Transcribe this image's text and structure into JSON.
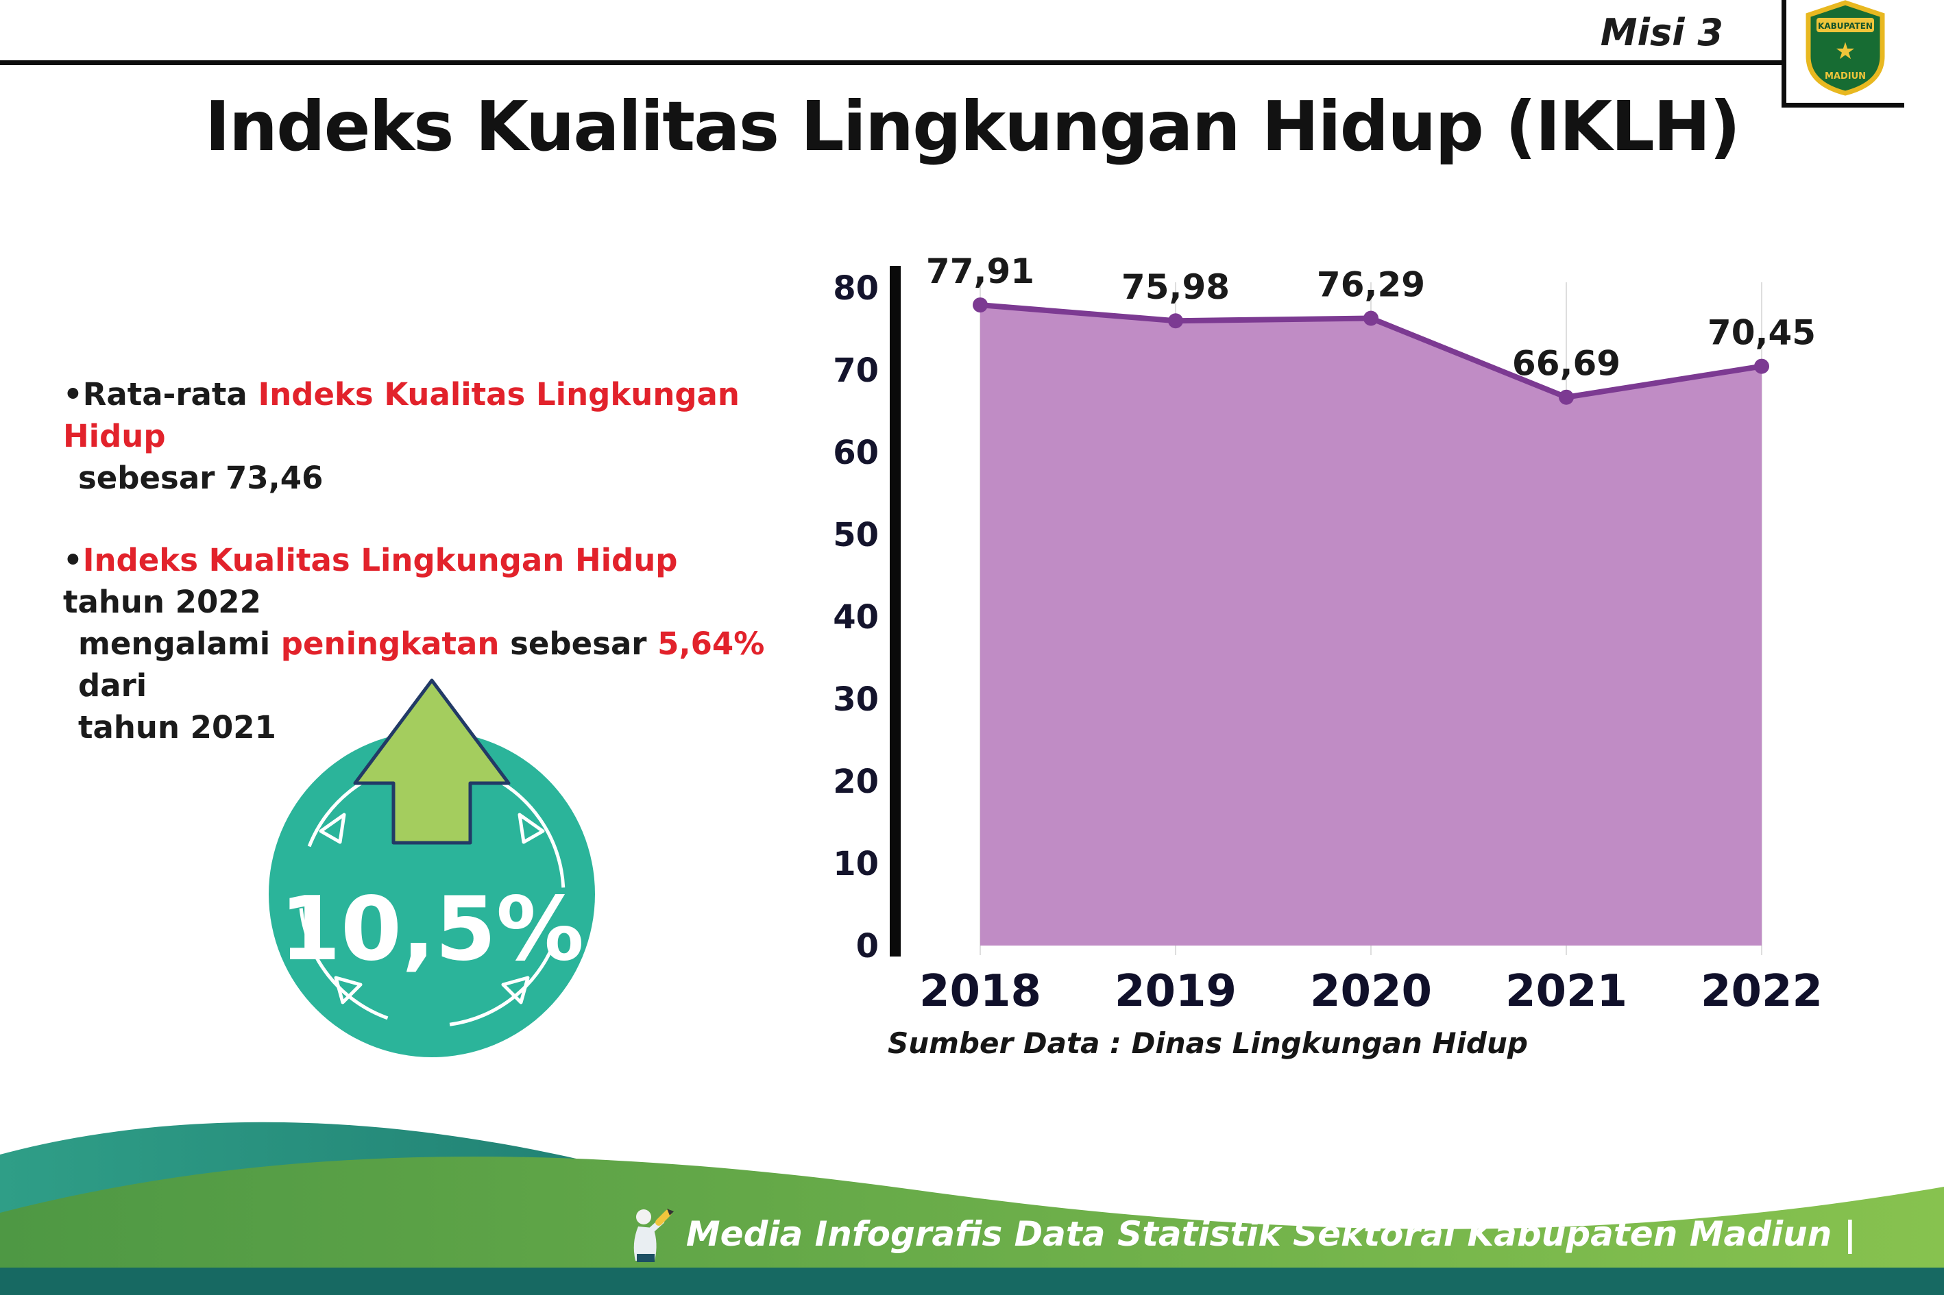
{
  "header": {
    "misi": "Misi 3",
    "title": "Indeks Kualitas Lingkungan Hidup (IKLH)",
    "logo_top": "KABUPATEN",
    "logo_bottom": "MADIUN"
  },
  "bullets": {
    "b1": {
      "bullet": "•",
      "black1": "Rata-rata ",
      "red1": "Indeks Kualitas Lingkungan Hidup",
      "black2": "sebesar 73,46"
    },
    "b2": {
      "bullet": "•",
      "red1": "Indeks Kualitas Lingkungan Hidup",
      "black1": " tahun 2022",
      "black2": "mengalami ",
      "red2": "peningkatan",
      "black3": " sebesar ",
      "red3": "5,64%",
      "black4": " dari",
      "black5": "tahun 2021"
    }
  },
  "badge": {
    "value": "10,5%",
    "circle_color": "#2bb49a",
    "arrow_color": "#a4cd5e"
  },
  "chart_data": {
    "type": "area",
    "title": "Indeks Kualitas Lingkungan Hidup (IKLH)",
    "categories": [
      "2018",
      "2019",
      "2020",
      "2021",
      "2022"
    ],
    "values": [
      77.91,
      75.98,
      76.29,
      66.69,
      70.45
    ],
    "value_labels": [
      "77,91",
      "75,98",
      "76,29",
      "66,69",
      "70,45"
    ],
    "xlabel": "",
    "ylabel": "",
    "ylim": [
      0,
      80
    ],
    "yticks": [
      0,
      10,
      20,
      30,
      40,
      50,
      60,
      70,
      80
    ],
    "grid": "vertical",
    "legend": "none",
    "line_color": "#7c3a92",
    "fill_color": "#c08cc5",
    "source": "Sumber Data : Dinas Lingkungan Hidup"
  },
  "footer": {
    "credit": "Media Infografis Data Statistik Sektoral Kabupaten Madiun |"
  }
}
